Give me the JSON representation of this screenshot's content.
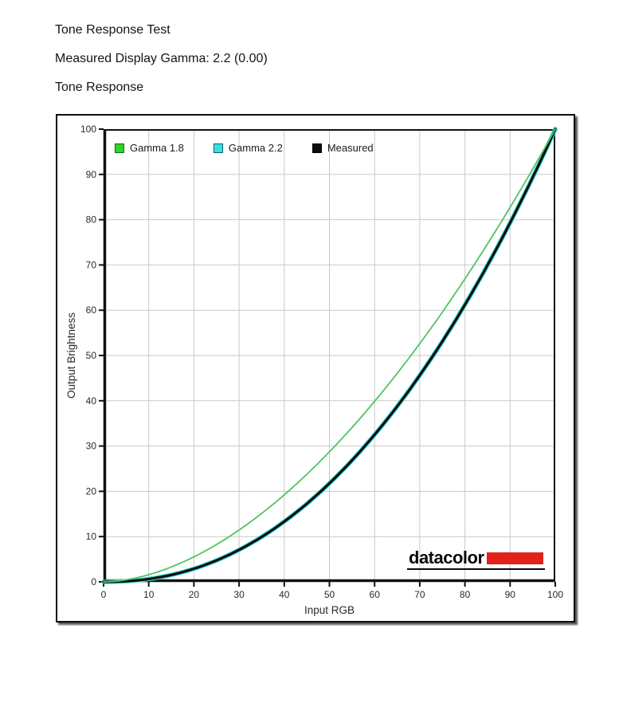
{
  "page": {
    "header_lines": [
      "Tone Response Test",
      "Measured Display Gamma: 2.2 (0.00)",
      "Tone Response"
    ]
  },
  "chart_data": {
    "type": "line",
    "title": "Tone Response",
    "xlabel": "Input RGB",
    "ylabel": "Output Brightness",
    "xlim": [
      0,
      100
    ],
    "ylim": [
      0,
      100
    ],
    "x_ticks": [
      0,
      10,
      20,
      30,
      40,
      50,
      60,
      70,
      80,
      90,
      100
    ],
    "y_ticks": [
      0,
      10,
      20,
      30,
      40,
      50,
      60,
      70,
      80,
      90,
      100
    ],
    "grid": true,
    "legend_position": "top-left",
    "x": [
      0,
      10,
      20,
      30,
      40,
      50,
      60,
      70,
      80,
      90,
      100
    ],
    "series": [
      {
        "name": "Gamma 1.8",
        "gamma": 1.8,
        "values": [
          0,
          1.6,
          5.5,
          11.5,
          19.2,
          28.7,
          39.9,
          52.6,
          66.9,
          82.7,
          100
        ],
        "color": "#4fc463",
        "swatch_fill": "#2bd32b",
        "swatch_border": "#0e6e0e",
        "line_width": 1.8
      },
      {
        "name": "Gamma 2.2",
        "gamma": 2.2,
        "values": [
          0,
          0.6,
          2.9,
          7.1,
          13.3,
          21.8,
          32.5,
          45.6,
          61.2,
          79.3,
          100
        ],
        "color": "#3cd8d8",
        "swatch_fill": "#3ae0e0",
        "swatch_border": "#0b5f5f",
        "line_width": 5.5
      },
      {
        "name": "Measured",
        "gamma": 2.2,
        "values": [
          0,
          0.6,
          2.9,
          7.1,
          13.3,
          21.8,
          32.5,
          45.6,
          61.2,
          79.3,
          100
        ],
        "color": "#0d0d0d",
        "swatch_fill": "#0d0d0d",
        "swatch_border": "#000000",
        "line_width": 3.2
      }
    ],
    "colors": {
      "grid": "#c9c9c9",
      "axis": "#111111",
      "tick_text": "#2a2a2a"
    },
    "draw_order": [
      1,
      2,
      0
    ]
  },
  "logo": {
    "text": "datacolor",
    "accent_color": "#e32119"
  }
}
